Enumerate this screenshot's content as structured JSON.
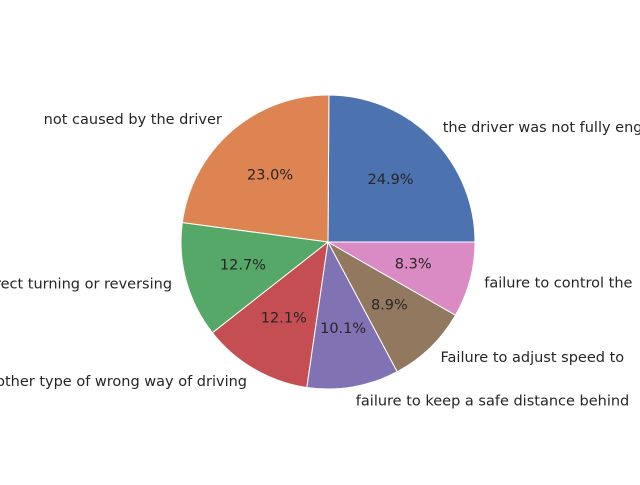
{
  "chart_data": {
    "type": "pie",
    "title": "",
    "start_angle_deg": 0,
    "direction": "counterclockwise",
    "slices": [
      {
        "label": "the driver was not fully engaged",
        "percent": 24.9,
        "pct_label": "24.9%",
        "color": "#4C72B0"
      },
      {
        "label": "not caused by the driver",
        "percent": 23.0,
        "pct_label": "23.0%",
        "color": "#DD8452"
      },
      {
        "label": "incorrect turning or reversing",
        "percent": 12.7,
        "pct_label": "12.7%",
        "color": "#55A868"
      },
      {
        "label": "other type of wrong way of driving",
        "percent": 12.1,
        "pct_label": "12.1%",
        "color": "#C44E52"
      },
      {
        "label": "failure to keep a safe distance behind",
        "percent": 10.1,
        "pct_label": "10.1%",
        "color": "#8172B3"
      },
      {
        "label": "Failure to adjust speed to",
        "percent": 8.9,
        "pct_label": "8.9%",
        "color": "#937860"
      },
      {
        "label": "failure to control the",
        "percent": 8.3,
        "pct_label": "8.3%",
        "color": "#DA8BC3"
      }
    ]
  }
}
